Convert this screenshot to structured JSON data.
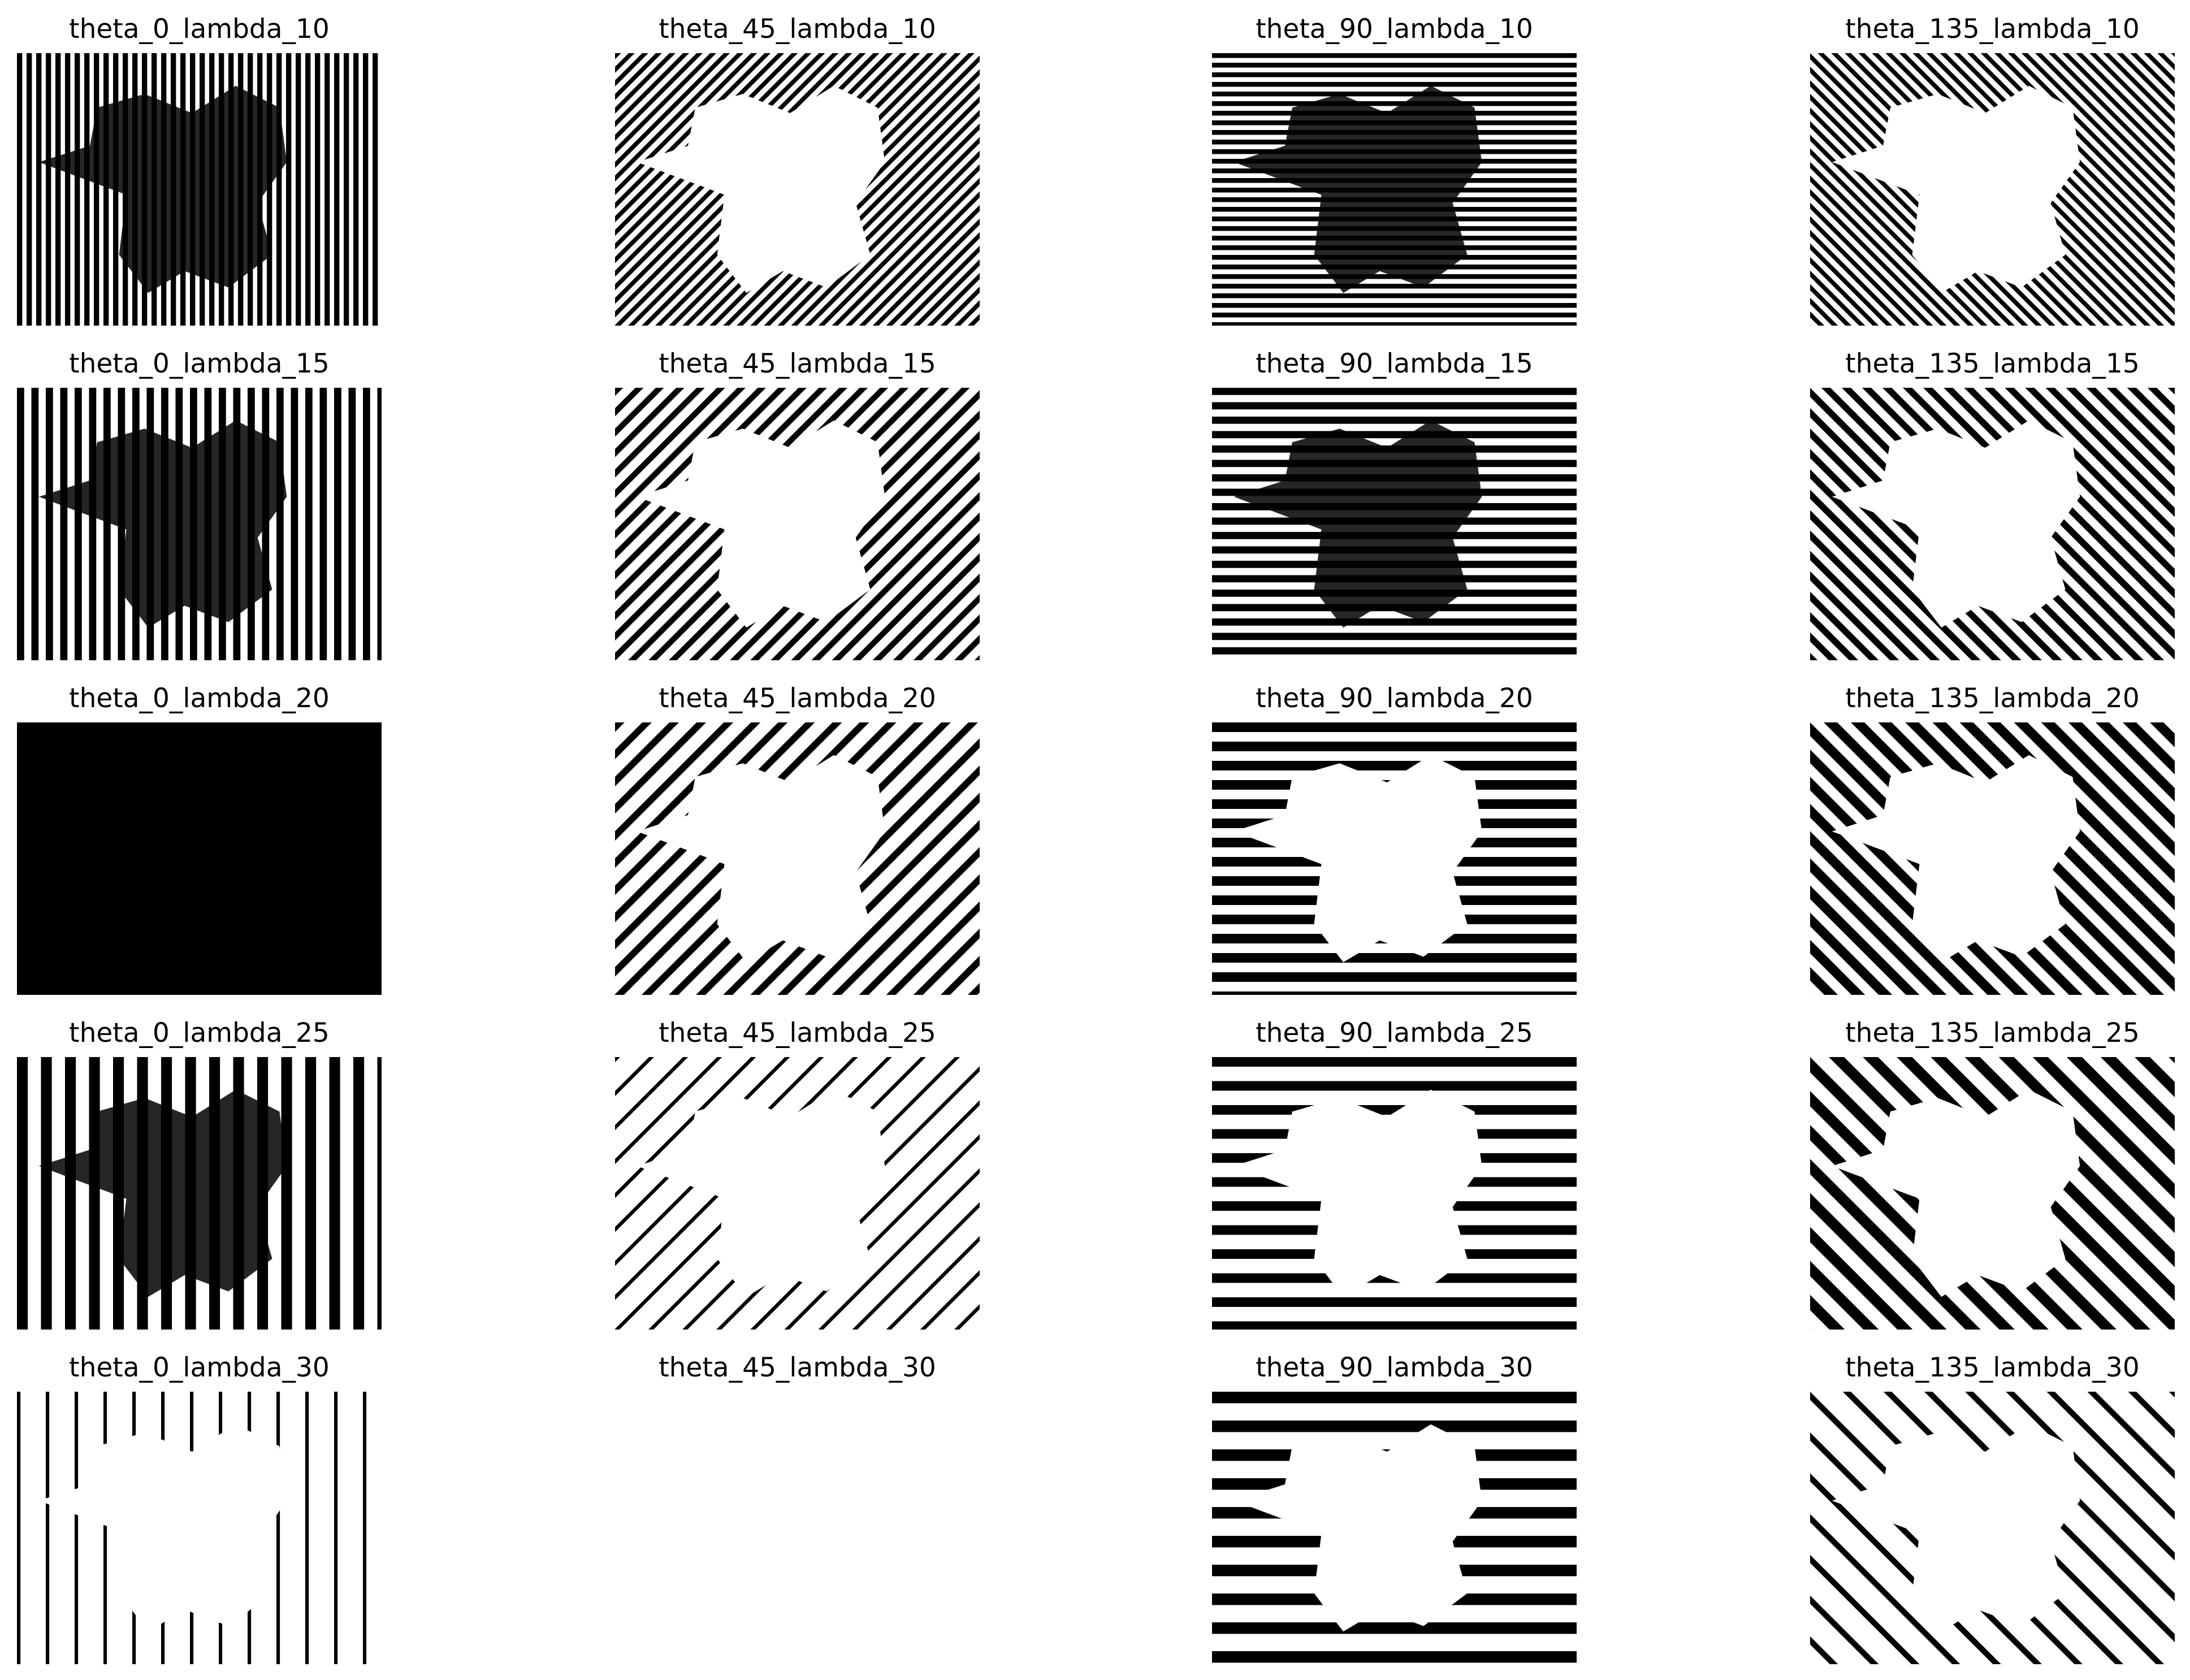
{
  "figure": {
    "panels": [
      {
        "title": "theta_0_lambda_10",
        "theta": 0,
        "lambda": 10,
        "coverage": 0.55,
        "blob_dark": true
      },
      {
        "title": "theta_45_lambda_10",
        "theta": 45,
        "lambda": 10,
        "coverage": 0.45,
        "blob_dark": false
      },
      {
        "title": "theta_90_lambda_10",
        "theta": 90,
        "lambda": 10,
        "coverage": 0.5,
        "blob_dark": true
      },
      {
        "title": "theta_135_lambda_10",
        "theta": 135,
        "lambda": 10,
        "coverage": 0.45,
        "blob_dark": false
      },
      {
        "title": "theta_0_lambda_15",
        "theta": 0,
        "lambda": 15,
        "coverage": 0.5,
        "blob_dark": true
      },
      {
        "title": "theta_45_lambda_15",
        "theta": 45,
        "lambda": 15,
        "coverage": 0.4,
        "blob_dark": false
      },
      {
        "title": "theta_90_lambda_15",
        "theta": 90,
        "lambda": 15,
        "coverage": 0.5,
        "blob_dark": true
      },
      {
        "title": "theta_135_lambda_15",
        "theta": 135,
        "lambda": 15,
        "coverage": 0.45,
        "blob_dark": false
      },
      {
        "title": "theta_0_lambda_20",
        "theta": 0,
        "lambda": 20,
        "coverage": 1.0,
        "blob_dark": true
      },
      {
        "title": "theta_45_lambda_20",
        "theta": 45,
        "lambda": 20,
        "coverage": 0.35,
        "blob_dark": false
      },
      {
        "title": "theta_90_lambda_20",
        "theta": 90,
        "lambda": 20,
        "coverage": 0.5,
        "blob_dark": false
      },
      {
        "title": "theta_135_lambda_20",
        "theta": 135,
        "lambda": 20,
        "coverage": 0.5,
        "blob_dark": false
      },
      {
        "title": "theta_0_lambda_25",
        "theta": 0,
        "lambda": 25,
        "coverage": 0.45,
        "blob_dark": true
      },
      {
        "title": "theta_45_lambda_25",
        "theta": 45,
        "lambda": 25,
        "coverage": 0.15,
        "blob_dark": false
      },
      {
        "title": "theta_90_lambda_25",
        "theta": 90,
        "lambda": 25,
        "coverage": 0.4,
        "blob_dark": false
      },
      {
        "title": "theta_135_lambda_25",
        "theta": 135,
        "lambda": 25,
        "coverage": 0.45,
        "blob_dark": false
      },
      {
        "title": "theta_0_lambda_30",
        "theta": 0,
        "lambda": 30,
        "coverage": 0.12,
        "blob_dark": false
      },
      {
        "title": "theta_45_lambda_30",
        "theta": 45,
        "lambda": 30,
        "coverage": 0.0,
        "blob_dark": false
      },
      {
        "title": "theta_90_lambda_30",
        "theta": 90,
        "lambda": 30,
        "coverage": 0.4,
        "blob_dark": false
      },
      {
        "title": "theta_135_lambda_30",
        "theta": 135,
        "lambda": 30,
        "coverage": 0.2,
        "blob_dark": false
      }
    ]
  },
  "colors": {
    "background": "#ffffff",
    "ink": "#000000"
  }
}
